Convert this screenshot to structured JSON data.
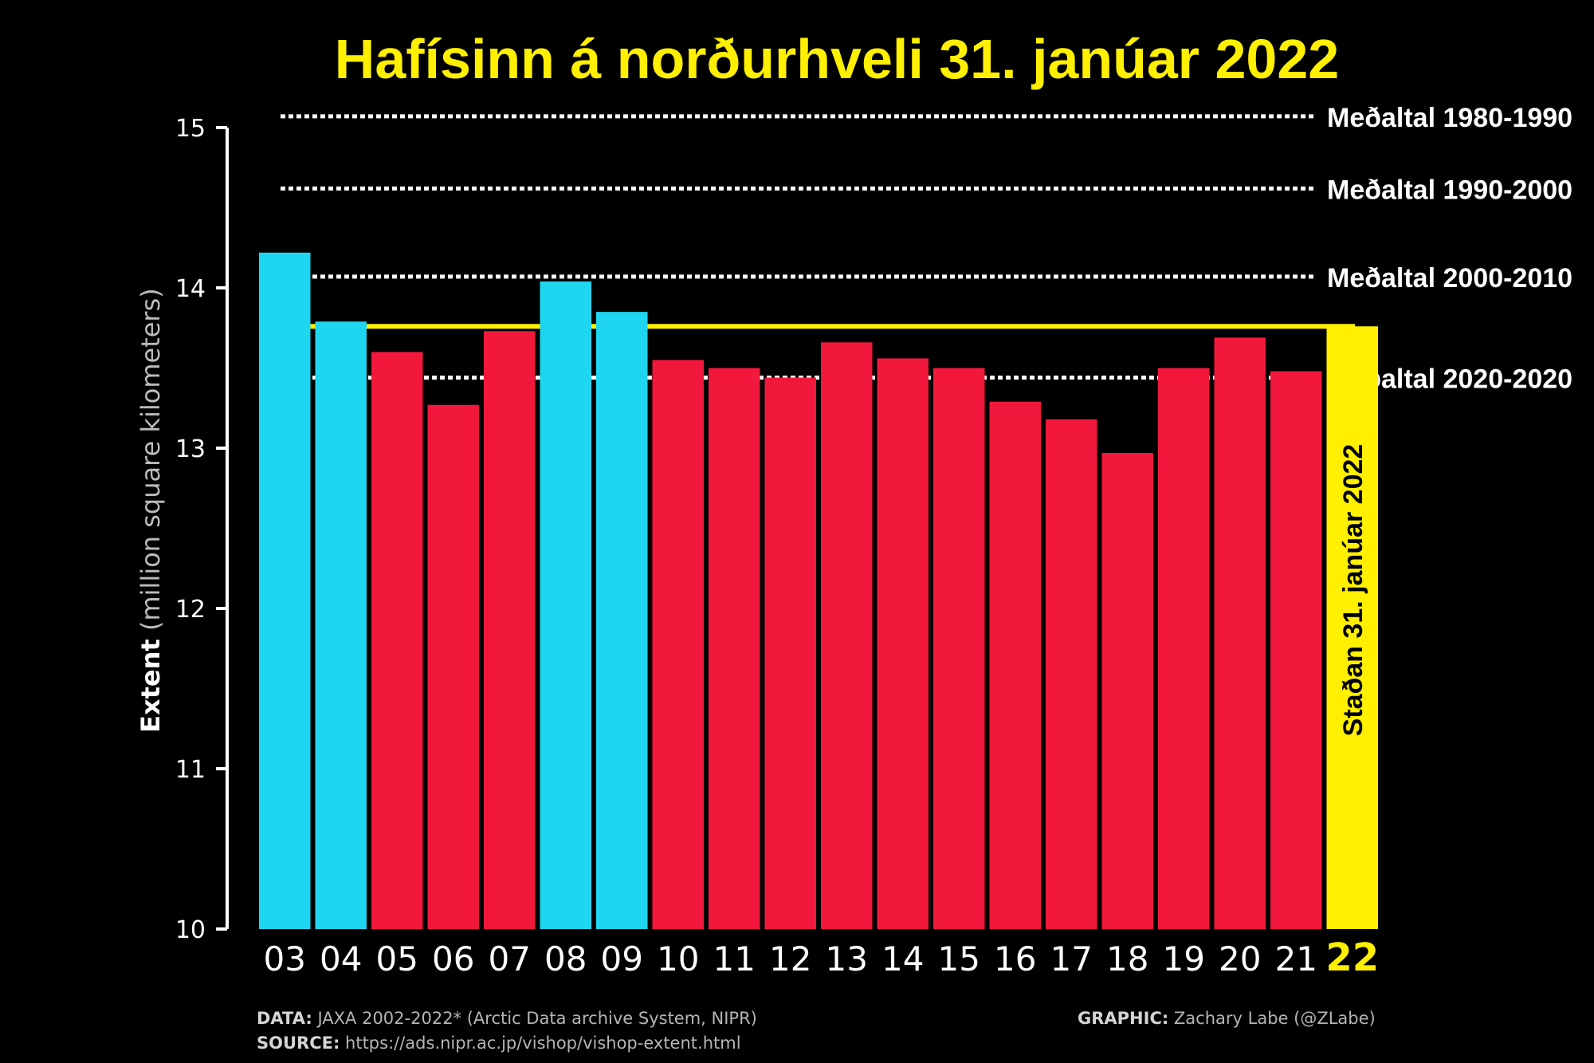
{
  "chart_data": {
    "type": "bar",
    "title": "Hafísinn á norðurhveli 31. janúar 2022",
    "ylabel_bold": "Extent",
    "ylabel_rest": " (million square kilometers)",
    "ylim": [
      10,
      15
    ],
    "yticks": [
      "10",
      "11",
      "12",
      "13",
      "14",
      "15"
    ],
    "categories": [
      "03",
      "04",
      "05",
      "06",
      "07",
      "08",
      "09",
      "10",
      "11",
      "12",
      "13",
      "14",
      "15",
      "16",
      "17",
      "18",
      "19",
      "20",
      "21",
      "22"
    ],
    "values": [
      14.22,
      13.79,
      13.6,
      13.27,
      13.73,
      14.04,
      13.85,
      13.55,
      13.5,
      13.44,
      13.66,
      13.56,
      13.5,
      13.29,
      13.18,
      12.97,
      13.5,
      13.69,
      13.48,
      13.76
    ],
    "bar_colors": [
      "#1ed6f0",
      "#1ed6f0",
      "#f2183c",
      "#f2183c",
      "#f2183c",
      "#1ed6f0",
      "#1ed6f0",
      "#f2183c",
      "#f2183c",
      "#f2183c",
      "#f2183c",
      "#f2183c",
      "#f2183c",
      "#f2183c",
      "#f2183c",
      "#f2183c",
      "#f2183c",
      "#f2183c",
      "#f2183c",
      "#ffef00"
    ],
    "highlight": {
      "index": 19,
      "label": "Staðan 31. janúar 2022",
      "color": "#ffef00"
    },
    "reference_lines": [
      {
        "label": "Meðaltal 1980-1990",
        "value": 15.07
      },
      {
        "label": "Meðaltal 1990-2000",
        "value": 14.62
      },
      {
        "label": "Meðaltal 2000-2010",
        "value": 14.07
      },
      {
        "label": "Meðaltal 2020-2020",
        "value": 13.44
      }
    ],
    "current_level_line": {
      "value": 13.76,
      "color": "#ffef00"
    },
    "footer": {
      "data_label": "DATA:",
      "data_text": " JAXA 2002-2022* (Arctic Data archive System, NIPR)",
      "source_label": "SOURCE:",
      "source_text": " https://ads.nipr.ac.jp/vishop/vishop-extent.html",
      "graphic_label": "GRAPHIC:",
      "graphic_text": " Zachary Labe (@ZLabe)"
    }
  }
}
